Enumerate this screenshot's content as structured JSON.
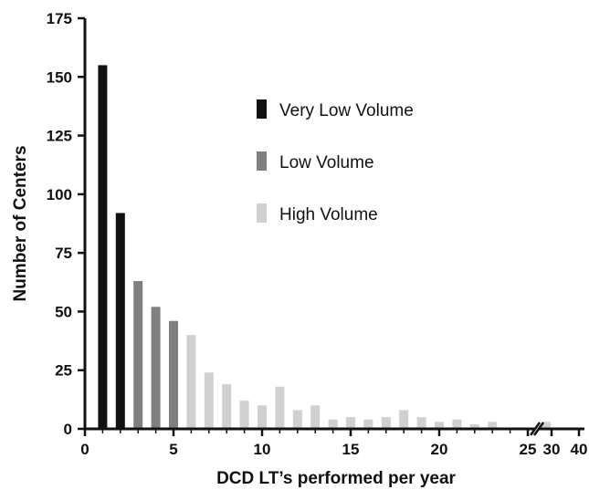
{
  "chart_data": {
    "type": "bar",
    "xlabel": "DCD LT’s performed per year",
    "ylabel": "Number of Centers",
    "ylim": [
      0,
      175
    ],
    "yticks": [
      0,
      25,
      50,
      75,
      100,
      125,
      150,
      175
    ],
    "xticks": [
      0,
      5,
      10,
      15,
      20,
      25
    ],
    "xticks_after_break": [
      30,
      40
    ],
    "axis_break_after": 25,
    "legend_position": "upper-center",
    "series": [
      {
        "name": "Very Low Volume",
        "color": "#111111",
        "x": [
          1,
          2
        ],
        "values": [
          155,
          92
        ]
      },
      {
        "name": "Low Volume",
        "color": "#808080",
        "x": [
          3,
          4,
          5
        ],
        "values": [
          63,
          52,
          46
        ]
      },
      {
        "name": "High Volume",
        "color": "#d0d0d0",
        "x": [
          6,
          7,
          8,
          9,
          10,
          11,
          12,
          13,
          14,
          15,
          16,
          17,
          18,
          19,
          20,
          21,
          22,
          23,
          28
        ],
        "values": [
          40,
          24,
          19,
          12,
          10,
          18,
          8,
          10,
          4,
          5,
          4,
          5,
          8,
          5,
          3,
          4,
          2,
          3,
          3
        ]
      }
    ]
  }
}
